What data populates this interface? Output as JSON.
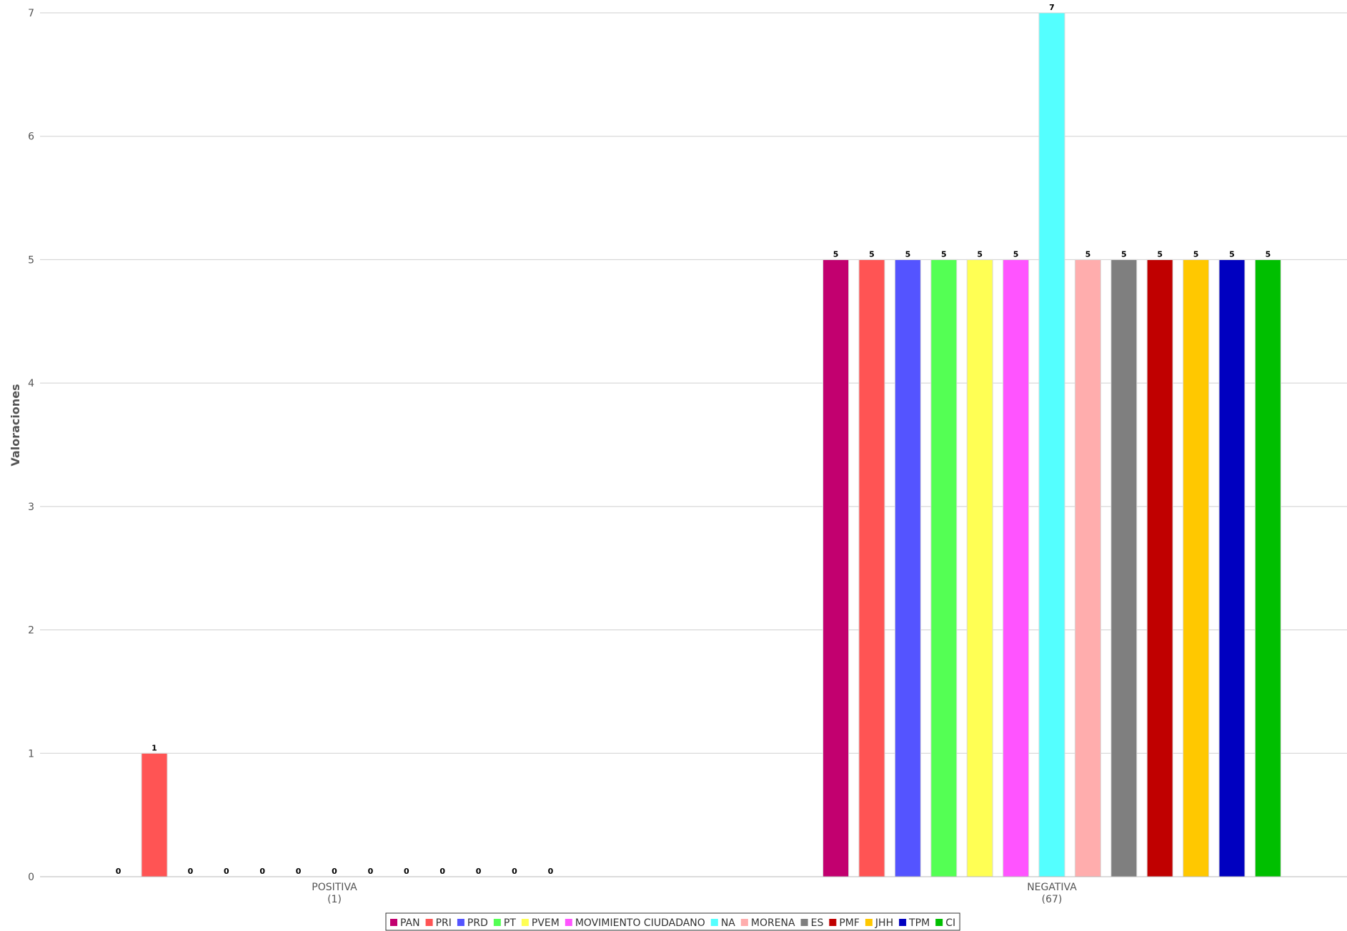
{
  "chart_data": {
    "type": "bar",
    "title": "",
    "ylabel": "Valoraciones",
    "xlabel": "",
    "ylim": [
      0,
      7
    ],
    "yticks": [
      0,
      1,
      2,
      3,
      4,
      5,
      6,
      7
    ],
    "grid": true,
    "legend_position": "bottom-center",
    "categories": [
      {
        "name": "POSITIVA",
        "total": "(1)"
      },
      {
        "name": "NEGATIVA",
        "total": "(67)"
      }
    ],
    "series": [
      {
        "name": "PAN",
        "color": "#c2006f",
        "values": [
          0,
          5
        ]
      },
      {
        "name": "PRI",
        "color": "#ff5454",
        "values": [
          1,
          5
        ]
      },
      {
        "name": "PRD",
        "color": "#5454ff",
        "values": [
          0,
          5
        ]
      },
      {
        "name": "PT",
        "color": "#54ff54",
        "values": [
          0,
          5
        ]
      },
      {
        "name": "PVEM",
        "color": "#ffff54",
        "values": [
          0,
          5
        ]
      },
      {
        "name": "MOVIMIENTO CIUDADANO",
        "color": "#ff54ff",
        "values": [
          0,
          5
        ]
      },
      {
        "name": "NA",
        "color": "#54ffff",
        "values": [
          0,
          7
        ]
      },
      {
        "name": "MORENA",
        "color": "#ffadad",
        "values": [
          0,
          5
        ]
      },
      {
        "name": "ES",
        "color": "#7f7f7f",
        "values": [
          0,
          5
        ]
      },
      {
        "name": "PMF",
        "color": "#c00000",
        "values": [
          0,
          5
        ]
      },
      {
        "name": "JHH",
        "color": "#ffc800",
        "values": [
          0,
          5
        ]
      },
      {
        "name": "TPM",
        "color": "#0000c0",
        "values": [
          0,
          5
        ]
      },
      {
        "name": "CI",
        "color": "#00bf00",
        "values": [
          0,
          5
        ]
      }
    ]
  }
}
